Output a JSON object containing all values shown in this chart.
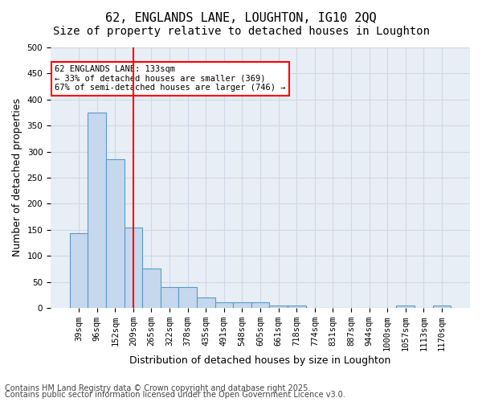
{
  "title1": "62, ENGLANDS LANE, LOUGHTON, IG10 2QQ",
  "title2": "Size of property relative to detached houses in Loughton",
  "xlabel": "Distribution of detached houses by size in Loughton",
  "ylabel": "Number of detached properties",
  "categories": [
    "39sqm",
    "96sqm",
    "152sqm",
    "209sqm",
    "265sqm",
    "322sqm",
    "378sqm",
    "435sqm",
    "491sqm",
    "548sqm",
    "605sqm",
    "661sqm",
    "718sqm",
    "774sqm",
    "831sqm",
    "887sqm",
    "944sqm",
    "1000sqm",
    "1057sqm",
    "1113sqm",
    "1170sqm"
  ],
  "values": [
    143,
    375,
    285,
    155,
    75,
    40,
    40,
    20,
    10,
    10,
    10,
    5,
    5,
    0,
    0,
    0,
    0,
    0,
    5,
    0,
    5
  ],
  "bar_color": "#c5d8ed",
  "bar_edge_color": "#5a9ac8",
  "grid_color": "#d0d8e8",
  "bg_color": "#e8eef5",
  "vline_x": 3.5,
  "vline_color": "red",
  "annotation_text": "62 ENGLANDS LANE: 133sqm\n← 33% of detached houses are smaller (369)\n67% of semi-detached houses are larger (746) →",
  "annotation_box_color": "white",
  "annotation_box_edge": "red",
  "footer1": "Contains HM Land Registry data © Crown copyright and database right 2025.",
  "footer2": "Contains public sector information licensed under the Open Government Licence v3.0.",
  "ylim": [
    0,
    500
  ],
  "title_fontsize": 11,
  "subtitle_fontsize": 10,
  "axis_label_fontsize": 9,
  "tick_fontsize": 7.5,
  "footer_fontsize": 7
}
